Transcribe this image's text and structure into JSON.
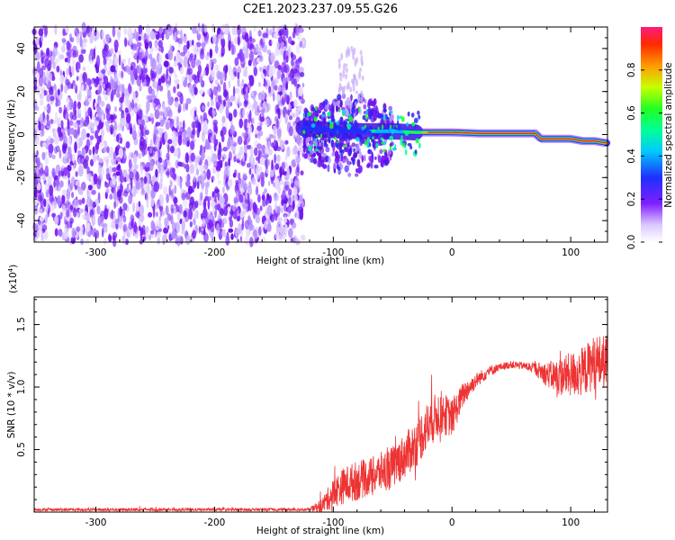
{
  "figure": {
    "title": "C2E1.2023.237.09.55.G26"
  },
  "chart_data": [
    {
      "type": "heatmap",
      "name": "spectrogram",
      "title": "C2E1.2023.237.09.55.G26",
      "xlabel": "Height of straight line (km)",
      "ylabel": "Frequency (Hz)",
      "xlim": [
        -352,
        131
      ],
      "ylim": [
        -50,
        50
      ],
      "x_ticks": [
        -300,
        -200,
        -100,
        0,
        100
      ],
      "x_tick_labels": [
        "-300",
        "-200",
        "-100",
        "0",
        "100"
      ],
      "y_ticks": [
        -40,
        -20,
        0,
        20,
        40
      ],
      "y_tick_labels": [
        "-40",
        "-20",
        "0",
        "20",
        "40"
      ],
      "signal_track": {
        "height_km": [
          -125,
          -100,
          -75,
          -50,
          -30,
          -15,
          0,
          25,
          50,
          70,
          75,
          90,
          100,
          110,
          120,
          131
        ],
        "frequency_hz": [
          3,
          2,
          1.5,
          1.5,
          1,
          1,
          1,
          0.5,
          0.5,
          0.5,
          -2,
          -2,
          -2,
          -3,
          -3,
          -4
        ]
      },
      "noise_region_km": [
        -352,
        -125
      ],
      "colorbar": {
        "label": "Normalized spectral amplitude",
        "ticks": [
          0.0,
          0.2,
          0.4,
          0.6,
          0.8
        ],
        "tick_labels": [
          "0.0",
          "0.2",
          "0.4",
          "0.6",
          "0.8"
        ],
        "range": [
          0,
          1
        ]
      }
    },
    {
      "type": "line",
      "name": "snr",
      "xlabel": "Height of straight line (km)",
      "ylabel": "SNR (10 * v/v)",
      "scale_label": "(x10",
      "scale_exponent": "4",
      "scale_close": ")",
      "xlim": [
        -352,
        131
      ],
      "ylim": [
        0,
        1.72
      ],
      "x_ticks": [
        -300,
        -200,
        -100,
        0,
        100
      ],
      "x_tick_labels": [
        "-300",
        "-200",
        "-100",
        "0",
        "100"
      ],
      "y_ticks": [
        0.5,
        1.0,
        1.5
      ],
      "y_tick_labels": [
        "0.5",
        "1.0",
        "1.5"
      ],
      "series": [
        {
          "name": "SNR",
          "color": "#ee3333",
          "x": [
            -352,
            -300,
            -250,
            -200,
            -150,
            -120,
            -110,
            -100,
            -90,
            -80,
            -70,
            -60,
            -50,
            -40,
            -30,
            -20,
            -10,
            0,
            10,
            20,
            30,
            40,
            50,
            60,
            70,
            80,
            90,
            100,
            110,
            120,
            131
          ],
          "y": [
            0.02,
            0.02,
            0.02,
            0.02,
            0.02,
            0.02,
            0.05,
            0.15,
            0.22,
            0.25,
            0.28,
            0.32,
            0.36,
            0.45,
            0.55,
            0.7,
            0.8,
            0.75,
            0.95,
            1.05,
            1.12,
            1.16,
            1.18,
            1.17,
            1.15,
            1.1,
            1.08,
            1.1,
            1.12,
            1.2,
            1.2
          ],
          "noise": [
            0.012,
            0.012,
            0.012,
            0.012,
            0.012,
            0.012,
            0.06,
            0.12,
            0.15,
            0.16,
            0.15,
            0.16,
            0.17,
            0.18,
            0.19,
            0.2,
            0.18,
            0.15,
            0.1,
            0.06,
            0.05,
            0.03,
            0.03,
            0.03,
            0.05,
            0.1,
            0.15,
            0.18,
            0.2,
            0.22,
            0.22
          ]
        }
      ]
    }
  ]
}
